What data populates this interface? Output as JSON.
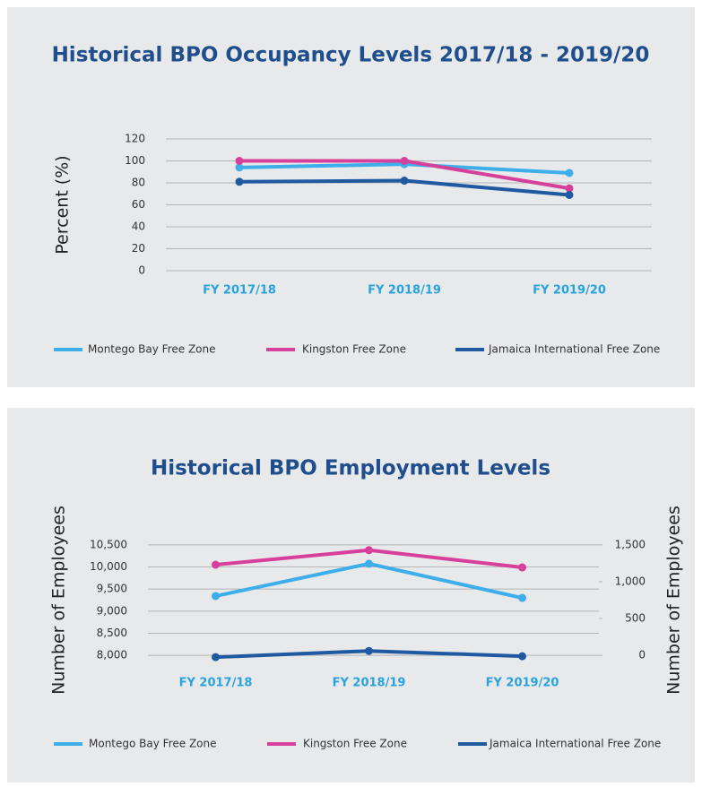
{
  "chart_data": [
    {
      "type": "line",
      "title": "Historical BPO Occupancy Levels 2017/18 - 2019/20",
      "y_label": "Percent (%)",
      "categories": [
        "FY 2017/18",
        "FY 2018/19",
        "FY 2019/20"
      ],
      "series": [
        {
          "name": "Montego Bay Free Zone",
          "color": "#3daee9",
          "values": [
            94,
            97,
            89
          ]
        },
        {
          "name": "Kingston Free Zone",
          "color": "#d6409a",
          "values": [
            100,
            100,
            75
          ]
        },
        {
          "name": "Jamaica International Free Zone",
          "color": "#1f5aa0",
          "values": [
            81,
            82,
            69
          ]
        }
      ],
      "ylim": [
        0,
        120
      ],
      "yticks": [
        0,
        20,
        40,
        60,
        80,
        100,
        120
      ],
      "grid": true,
      "legend": "bottom"
    },
    {
      "type": "line",
      "title": "Historical BPO Employment Levels",
      "y_label": "Number of Employees",
      "y2_label": "Number of Employees",
      "categories": [
        "FY 2017/18",
        "FY 2018/19",
        "FY 2019/20"
      ],
      "series": [
        {
          "name": "Montego Bay Free Zone",
          "color": "#3daee9",
          "axis": "y2",
          "values": [
            805,
            1244,
            780
          ]
        },
        {
          "name": "Kingston Free Zone",
          "color": "#d6409a",
          "values": [
            10050,
            10380,
            9990
          ]
        },
        {
          "name": "Jamaica International Free Zone",
          "color": "#1f5aa0",
          "values": [
            7960,
            8100,
            7980
          ]
        }
      ],
      "ylim": [
        7800,
        10700
      ],
      "yticks": [
        {
          "value": 8000,
          "label": "8,000"
        },
        {
          "value": 8500,
          "label": "8,500"
        },
        {
          "value": 9000,
          "label": "9,000"
        },
        {
          "value": 9500,
          "label": "9,500"
        },
        {
          "value": 10000,
          "label": "10,000"
        },
        {
          "value": 10500,
          "label": "10,500"
        }
      ],
      "y2lim": [
        -120,
        1620
      ],
      "y2ticks": [
        0,
        500,
        {
          "value": 1000,
          "label": "1,000"
        },
        {
          "value": 1500,
          "label": "1,500"
        }
      ],
      "grid": true,
      "legend": "bottom"
    }
  ]
}
